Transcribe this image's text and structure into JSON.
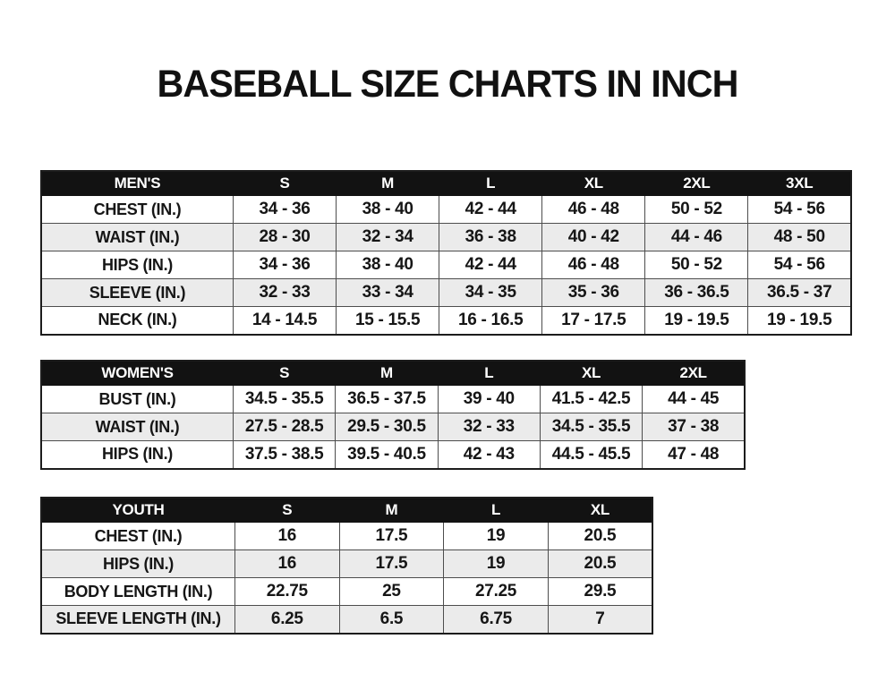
{
  "page": {
    "title": "BASEBALL SIZE CHARTS IN INCH",
    "background_color": "#ffffff"
  },
  "colors": {
    "header_bg": "#121212",
    "header_text": "#ffffff",
    "row_bg": "#ffffff",
    "row_alt_bg": "#ebebeb",
    "border": "#4d4d4d",
    "outer_border": "#1c1c1c",
    "text": "#161616"
  },
  "tables": [
    {
      "name": "mens",
      "header": [
        "MEN'S",
        "S",
        "M",
        "L",
        "XL",
        "2XL",
        "3XL"
      ],
      "rows": [
        [
          "CHEST (IN.)",
          "34 - 36",
          "38 - 40",
          "42 - 44",
          "46 - 48",
          "50 - 52",
          "54 - 56"
        ],
        [
          "WAIST (IN.)",
          "28 - 30",
          "32 - 34",
          "36 - 38",
          "40 - 42",
          "44 - 46",
          "48 - 50"
        ],
        [
          "HIPS (IN.)",
          "34 - 36",
          "38 - 40",
          "42 - 44",
          "46 - 48",
          "50 - 52",
          "54 - 56"
        ],
        [
          "SLEEVE (IN.)",
          "32 - 33",
          "33 - 34",
          "34 - 35",
          "35 - 36",
          "36 - 36.5",
          "36.5 - 37"
        ],
        [
          "NECK (IN.)",
          "14 - 14.5",
          "15 - 15.5",
          "16 - 16.5",
          "17 - 17.5",
          "19 - 19.5",
          "19 - 19.5"
        ]
      ]
    },
    {
      "name": "womens",
      "header": [
        "WOMEN'S",
        "S",
        "M",
        "L",
        "XL",
        "2XL"
      ],
      "rows": [
        [
          "BUST (IN.)",
          "34.5 - 35.5",
          "36.5 - 37.5",
          "39 - 40",
          "41.5 - 42.5",
          "44 - 45"
        ],
        [
          "WAIST (IN.)",
          "27.5 - 28.5",
          "29.5 - 30.5",
          "32 - 33",
          "34.5 - 35.5",
          "37 - 38"
        ],
        [
          "HIPS (IN.)",
          "37.5 - 38.5",
          "39.5 - 40.5",
          "42 - 43",
          "44.5 - 45.5",
          "47 - 48"
        ]
      ]
    },
    {
      "name": "youth",
      "header": [
        "YOUTH",
        "S",
        "M",
        "L",
        "XL"
      ],
      "rows": [
        [
          "CHEST (IN.)",
          "16",
          "17.5",
          "19",
          "20.5"
        ],
        [
          "HIPS (IN.)",
          "16",
          "17.5",
          "19",
          "20.5"
        ],
        [
          "BODY LENGTH (IN.)",
          "22.75",
          "25",
          "27.25",
          "29.5"
        ],
        [
          "SLEEVE LENGTH (IN.)",
          "6.25",
          "6.5",
          "6.75",
          "7"
        ]
      ]
    }
  ]
}
